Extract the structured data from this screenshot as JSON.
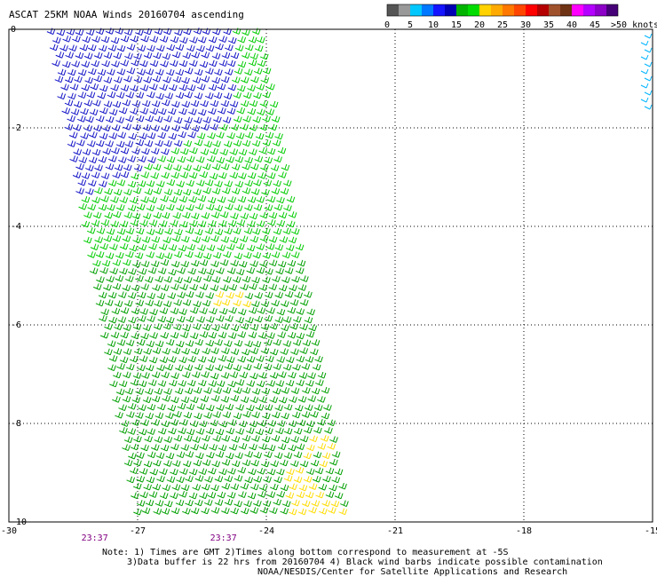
{
  "title": "ASCAT 25KM NOAA Winds 20160704 ascending",
  "legend": {
    "unit_label": ">50 knots",
    "swatches": [
      {
        "color": "#555555",
        "label": "0"
      },
      {
        "color": "#999999",
        "label": ""
      },
      {
        "color": "#00c8ff",
        "label": "5"
      },
      {
        "color": "#0078ff",
        "label": ""
      },
      {
        "color": "#1414ff",
        "label": "10"
      },
      {
        "color": "#0000b4",
        "label": ""
      },
      {
        "color": "#00b400",
        "label": "15"
      },
      {
        "color": "#00dc00",
        "label": ""
      },
      {
        "color": "#ffd200",
        "label": "20"
      },
      {
        "color": "#ffaa00",
        "label": ""
      },
      {
        "color": "#ff7800",
        "label": "25"
      },
      {
        "color": "#ff4600",
        "label": ""
      },
      {
        "color": "#ff0000",
        "label": "30"
      },
      {
        "color": "#b40000",
        "label": ""
      },
      {
        "color": "#a0522d",
        "label": "35"
      },
      {
        "color": "#6e3214",
        "label": ""
      },
      {
        "color": "#ff00ff",
        "label": "40"
      },
      {
        "color": "#b400ff",
        "label": ""
      },
      {
        "color": "#8c00c8",
        "label": "45"
      },
      {
        "color": "#460078",
        "label": ""
      }
    ]
  },
  "axes": {
    "x_ticks": [
      -30,
      -27,
      -24,
      -21,
      -18,
      -15
    ],
    "x_tick_labels": [
      "-30",
      "-27",
      "-24",
      "-21",
      "-18",
      "-15"
    ],
    "y_ticks": [
      0,
      -2,
      -4,
      -6,
      -8,
      -10
    ],
    "y_tick_labels": [
      "0",
      "-2",
      "-4",
      "-6",
      "-8",
      "-10"
    ],
    "xlim": [
      -30,
      -15
    ],
    "ylim": [
      -10,
      0
    ],
    "grid": "dotted"
  },
  "swath_times": [
    {
      "label": "23:37",
      "lon": -28
    },
    {
      "label": "23:37",
      "lon": -25
    }
  ],
  "notes": [
    "Note: 1) Times are GMT 2)Times along bottom correspond to measurement at -5S",
    "3)Data buffer is 22 hrs from 20160704 4) Black wind barbs indicate possible contamination",
    "NOAA/NESDIS/Center for Satellite Applications and Research"
  ],
  "wind_regions": [
    {
      "speed_class": "10-15 knots",
      "color": "#1414c8",
      "lat_range": [
        -4.5,
        0
      ]
    },
    {
      "speed_class": "15-20 knots (light)",
      "color": "#00cc00",
      "lat_range": [
        -4.6,
        -2
      ]
    },
    {
      "speed_class": "15-20 knots",
      "color": "#00a000",
      "lat_range": [
        -10,
        -4
      ]
    },
    {
      "speed_class": "20-25 knots",
      "color": "#ffdc00",
      "lat_range": [
        -10,
        -8.2
      ]
    },
    {
      "speed_class": "5-10 knots",
      "color": "#00b4ff",
      "lat_range": [
        -1.7,
        0
      ]
    }
  ]
}
